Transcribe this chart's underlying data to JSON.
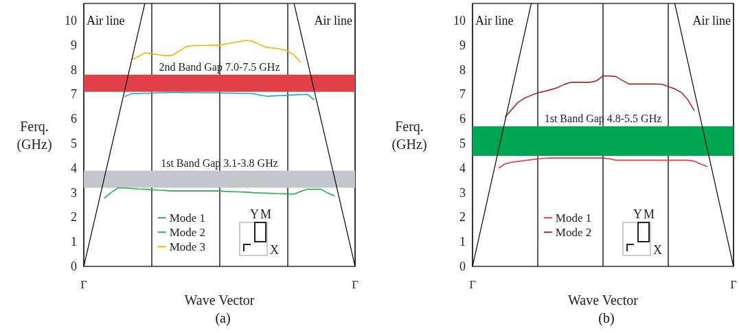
{
  "chart_data": [
    {
      "type": "line",
      "title": "(a)",
      "xlabel": "Wave Vector",
      "ylabel": "Ferq.\n(GHz)",
      "ylim": [
        0,
        10.7
      ],
      "categories": [
        "Γ",
        null,
        null,
        null,
        null,
        null,
        null,
        null,
        null,
        null,
        null,
        null,
        null,
        null,
        null,
        null,
        null,
        null,
        null,
        null,
        null,
        null,
        null,
        null,
        null,
        null,
        null,
        null,
        null,
        null,
        null,
        null,
        null,
        null,
        null,
        null,
        null,
        null,
        null,
        null,
        "Γ"
      ],
      "yticks": [
        0,
        1,
        2,
        3,
        4,
        5,
        6,
        7,
        8,
        9,
        10
      ],
      "grid": "x",
      "legend": "bottom",
      "series": [
        {
          "name": "Mode 1",
          "color": "#22b04b",
          "values": [
            null,
            null,
            null,
            2.77,
            3.0,
            3.19,
            3.19,
            3.17,
            3.15,
            3.14,
            3.12,
            3.1,
            3.09,
            3.07,
            3.07,
            3.07,
            3.07,
            3.07,
            3.07,
            3.07,
            3.07,
            3.05,
            3.04,
            3.03,
            3.02,
            3.0,
            2.99,
            2.98,
            2.97,
            2.96,
            2.95,
            2.94,
            3.05,
            3.14,
            3.14,
            3.14,
            2.98,
            2.87,
            null,
            null,
            null
          ]
        },
        {
          "name": "Mode 2",
          "color": "#1fa5e0",
          "values": [
            null,
            null,
            null,
            null,
            null,
            null,
            6.91,
            7.03,
            7.03,
            7.04,
            7.05,
            7.06,
            7.07,
            7.08,
            7.08,
            7.07,
            7.07,
            7.07,
            7.06,
            7.06,
            7.06,
            7.05,
            7.05,
            7.04,
            7.04,
            7.03,
            6.97,
            6.92,
            6.94,
            6.95,
            6.96,
            6.98,
            6.99,
            7.0,
            6.77,
            null,
            null,
            null,
            null,
            null,
            null
          ]
        },
        {
          "name": "Mode 3",
          "color": "#f5b500",
          "values": [
            null,
            null,
            null,
            null,
            null,
            null,
            null,
            8.41,
            8.53,
            8.69,
            8.65,
            8.61,
            8.58,
            8.58,
            8.75,
            8.93,
            8.98,
            8.99,
            8.99,
            9.0,
            9.0,
            9.05,
            9.1,
            9.15,
            9.2,
            9.15,
            9.02,
            8.91,
            8.88,
            8.84,
            8.78,
            8.61,
            8.29,
            null,
            null,
            null,
            null,
            null,
            null,
            null,
            null
          ]
        },
        {
          "color": "#000000",
          "values": [
            0,
            1.19,
            2.38,
            3.57,
            4.76,
            5.94,
            7.13,
            8.32,
            9.51,
            10.7,
            null,
            null,
            null,
            null,
            null,
            null,
            null,
            null,
            null,
            null,
            null,
            null,
            null,
            null,
            null,
            null,
            null,
            null,
            null,
            null,
            null,
            null,
            null,
            null,
            null,
            null,
            null,
            null,
            null,
            null,
            null
          ]
        },
        {
          "color": "#000000",
          "values": [
            null,
            null,
            null,
            null,
            null,
            null,
            null,
            null,
            null,
            null,
            null,
            null,
            null,
            null,
            null,
            null,
            null,
            null,
            null,
            null,
            null,
            null,
            null,
            null,
            null,
            null,
            null,
            null,
            null,
            null,
            null,
            10.7,
            9.51,
            8.32,
            7.13,
            5.94,
            4.76,
            3.57,
            2.38,
            1.19,
            0
          ]
        }
      ],
      "bands": [
        {
          "axis": "y",
          "from": 7.1,
          "to": 7.8,
          "label": "2nd Band Gap 7.0-7.5 GHz",
          "color": "#e04048"
        },
        {
          "axis": "y",
          "from": 3.2,
          "to": 3.9,
          "label": "1st Band Gap 3.1-3.8 GHz",
          "color": "#c4c8cc"
        }
      ],
      "annotations": [
        "Air line",
        "Air line",
        "Y",
        "M",
        "X"
      ]
    },
    {
      "type": "line",
      "title": "(b)",
      "xlabel": "Wave Vector",
      "ylabel": "Ferq.\n(GHz)",
      "ylim": [
        0,
        10.7
      ],
      "categories": [
        "Γ",
        null,
        null,
        null,
        null,
        null,
        null,
        null,
        null,
        null,
        null,
        null,
        null,
        null,
        null,
        null,
        null,
        null,
        null,
        null,
        null,
        null,
        null,
        null,
        null,
        null,
        null,
        null,
        null,
        null,
        null,
        null,
        null,
        null,
        null,
        null,
        null,
        null,
        null,
        null,
        "Γ"
      ],
      "yticks": [
        0,
        1,
        2,
        3,
        4,
        5,
        6,
        7,
        8,
        9,
        10
      ],
      "grid": "x",
      "legend": "bottom",
      "series": [
        {
          "name": "Mode 1",
          "color": "#e8383d",
          "values": [
            null,
            null,
            null,
            null,
            4.0,
            4.17,
            4.24,
            4.27,
            4.31,
            4.34,
            4.37,
            4.4,
            4.41,
            4.41,
            4.41,
            4.41,
            4.41,
            4.41,
            4.41,
            4.41,
            4.41,
            4.38,
            4.32,
            4.32,
            4.32,
            4.32,
            4.32,
            4.32,
            4.32,
            4.32,
            4.32,
            4.32,
            4.32,
            4.32,
            4.28,
            4.16,
            4.06,
            null,
            null,
            null,
            null
          ]
        },
        {
          "name": "Mode 2",
          "color": "#a52a2f",
          "values": [
            null,
            null,
            null,
            null,
            null,
            6.08,
            6.38,
            6.68,
            6.85,
            6.96,
            7.06,
            7.12,
            7.19,
            7.27,
            7.4,
            7.49,
            7.49,
            7.49,
            7.49,
            7.55,
            7.75,
            7.75,
            7.72,
            7.56,
            7.42,
            7.42,
            7.42,
            7.42,
            7.42,
            7.41,
            7.32,
            7.22,
            7.08,
            6.78,
            6.33,
            null,
            null,
            null,
            null,
            null,
            null
          ]
        },
        {
          "color": "#000000",
          "values": [
            0,
            1.19,
            2.38,
            3.57,
            4.76,
            5.94,
            7.13,
            8.32,
            9.51,
            10.7,
            null,
            null,
            null,
            null,
            null,
            null,
            null,
            null,
            null,
            null,
            null,
            null,
            null,
            null,
            null,
            null,
            null,
            null,
            null,
            null,
            null,
            null,
            null,
            null,
            null,
            null,
            null,
            null,
            null,
            null,
            null
          ]
        },
        {
          "color": "#000000",
          "values": [
            null,
            null,
            null,
            null,
            null,
            null,
            null,
            null,
            null,
            null,
            null,
            null,
            null,
            null,
            null,
            null,
            null,
            null,
            null,
            null,
            null,
            null,
            null,
            null,
            null,
            null,
            null,
            null,
            null,
            null,
            null,
            10.7,
            9.51,
            8.32,
            7.13,
            5.94,
            4.76,
            3.57,
            2.38,
            1.19,
            0
          ]
        }
      ],
      "bands": [
        {
          "axis": "y",
          "from": 4.5,
          "to": 5.7,
          "label": "1st Band Gap 4.8-5.5 GHz",
          "color": "#00a651"
        }
      ],
      "annotations": [
        "Air line",
        "Air line",
        "Y",
        "M",
        "X"
      ]
    }
  ]
}
